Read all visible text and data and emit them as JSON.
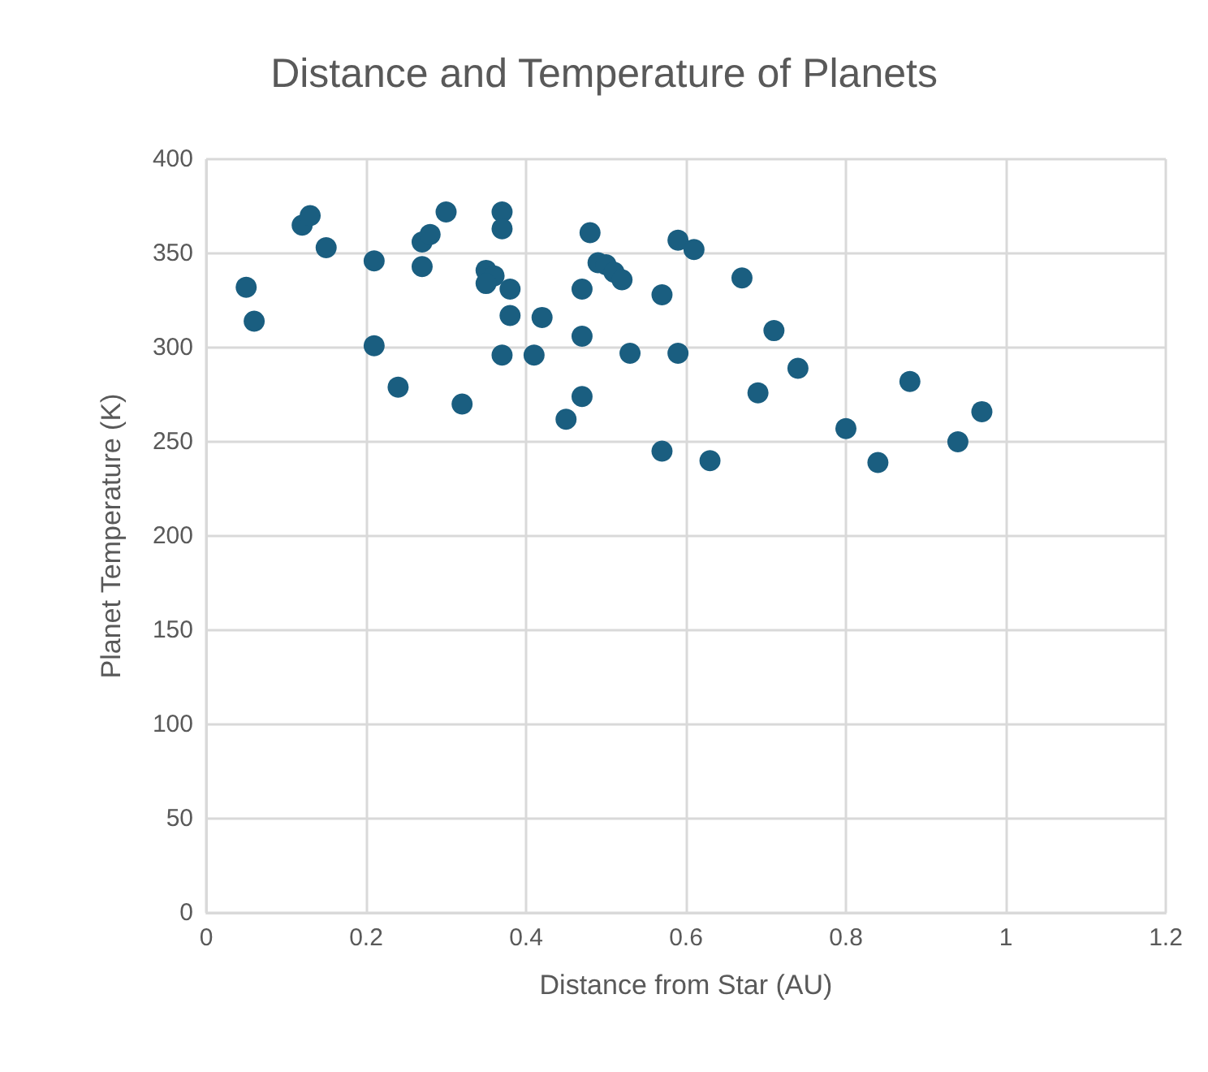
{
  "chart_data": {
    "type": "scatter",
    "title": "Distance and Temperature of Planets",
    "xlabel": "Distance from Star (AU)",
    "ylabel": "Planet Temperature (K)",
    "xlim": [
      0,
      1.2
    ],
    "xticks": [
      0,
      0.2,
      0.4,
      0.6,
      0.8,
      1,
      1.2
    ],
    "ylim": [
      0,
      400
    ],
    "yticks": [
      0,
      50,
      100,
      150,
      200,
      250,
      300,
      350,
      400
    ],
    "grid": true,
    "marker": "circle",
    "series": [
      {
        "color": "#1a5e80",
        "x": [
          0.05,
          0.06,
          0.12,
          0.13,
          0.15,
          0.21,
          0.21,
          0.24,
          0.27,
          0.28,
          0.27,
          0.3,
          0.32,
          0.35,
          0.36,
          0.35,
          0.37,
          0.37,
          0.38,
          0.38,
          0.37,
          0.42,
          0.41,
          0.45,
          0.47,
          0.47,
          0.47,
          0.48,
          0.49,
          0.5,
          0.51,
          0.52,
          0.53,
          0.57,
          0.57,
          0.59,
          0.61,
          0.59,
          0.63,
          0.67,
          0.69,
          0.71,
          0.74,
          0.8,
          0.84,
          0.88,
          0.94,
          0.97
        ],
        "values": [
          332,
          314,
          365,
          370,
          353,
          346,
          301,
          279,
          356,
          360,
          343,
          372,
          270,
          341,
          338,
          334,
          372,
          363,
          331,
          317,
          296,
          316,
          296,
          262,
          331,
          306,
          274,
          361,
          345,
          344,
          340,
          336,
          297,
          328,
          245,
          357,
          352,
          297,
          240,
          337,
          276,
          309,
          289,
          257,
          239,
          282,
          250,
          266
        ]
      }
    ]
  }
}
